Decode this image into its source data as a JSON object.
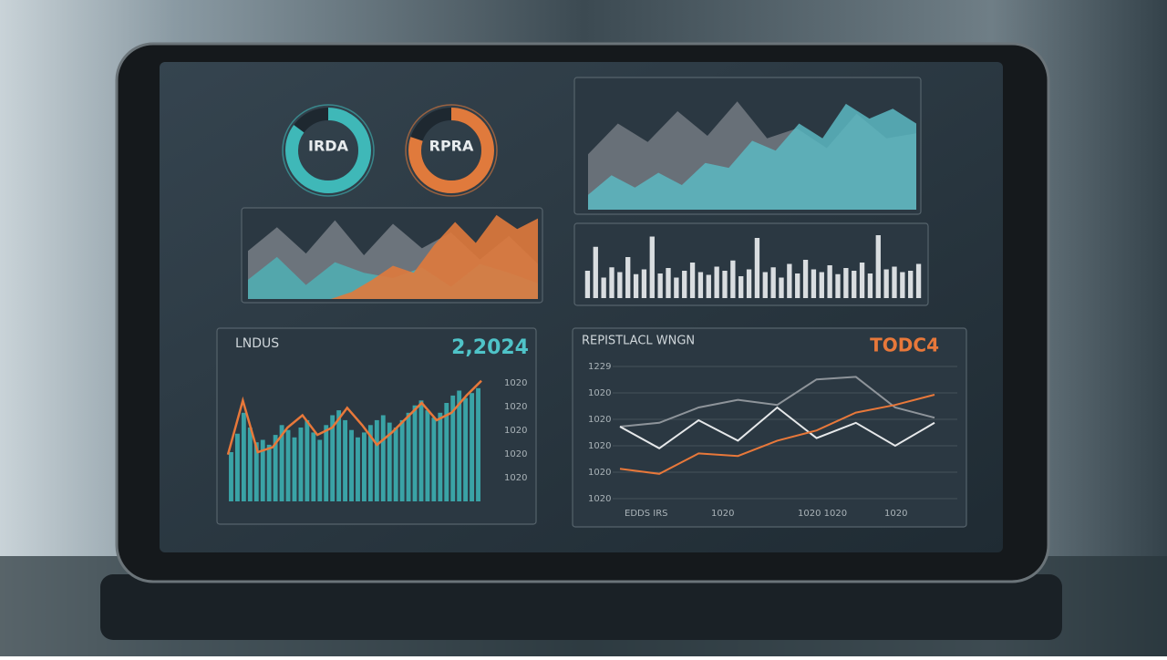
{
  "donuts": [
    {
      "label": "IRDA",
      "color": "#3fb8b8",
      "value": 85
    },
    {
      "label": "RPRA",
      "color": "#e07a3c",
      "value": 80
    }
  ],
  "top_area": {
    "ylim": [
      0,
      100
    ],
    "series": [
      {
        "color": "#7d838b",
        "values": [
          45,
          70,
          55,
          80,
          60,
          88,
          58,
          66,
          50,
          78,
          58,
          62
        ]
      },
      {
        "color": "#5cb9c2",
        "values": [
          12,
          28,
          18,
          30,
          20,
          38,
          34,
          56,
          48,
          70,
          58,
          86,
          74,
          82,
          70
        ]
      }
    ]
  },
  "mid_area": {
    "ylim": [
      0,
      100
    ],
    "series": [
      {
        "color": "#7d838b",
        "values": [
          55,
          82,
          52,
          90,
          50,
          86,
          58,
          76,
          45,
          72,
          40
        ]
      },
      {
        "color": "#4fb0b5",
        "values": [
          22,
          48,
          16,
          42,
          30,
          24,
          36,
          14,
          40,
          30,
          18
        ]
      },
      {
        "color": "#e07a3c",
        "values": [
          0,
          0,
          0,
          0,
          0,
          8,
          22,
          38,
          30,
          62,
          88,
          64,
          96,
          80,
          92
        ]
      }
    ]
  },
  "bar_chart": {
    "ylim": [
      0,
      100
    ],
    "color": "#d9dde0",
    "values": [
      40,
      75,
      30,
      45,
      38,
      60,
      35,
      42,
      90,
      36,
      44,
      30,
      40,
      52,
      38,
      34,
      46,
      40,
      55,
      32,
      42,
      88,
      38,
      45,
      30,
      50,
      36,
      56,
      42,
      38,
      48,
      35,
      44,
      40,
      52,
      36,
      92,
      42,
      46,
      38,
      40,
      50
    ]
  },
  "volume_panel": {
    "title": "LNDUS",
    "value": "2,2024",
    "ylim": [
      0,
      100
    ],
    "yticks": [
      "1020",
      "1020",
      "1020",
      "1020",
      "1020"
    ],
    "bar_color": "#3aa3a6",
    "bars": [
      40,
      55,
      72,
      60,
      48,
      50,
      46,
      54,
      62,
      58,
      52,
      60,
      66,
      56,
      50,
      62,
      70,
      74,
      66,
      58,
      52,
      56,
      62,
      66,
      70,
      64,
      60,
      66,
      72,
      78,
      82,
      74,
      68,
      72,
      80,
      86,
      90,
      84,
      88,
      92
    ],
    "line_color": "#e8783a",
    "line": [
      38,
      82,
      40,
      44,
      60,
      70,
      54,
      60,
      76,
      62,
      46,
      56,
      68,
      80,
      66,
      72,
      86,
      98
    ]
  },
  "trend_panel": {
    "title": "REPISTLACL WNGN",
    "value": "TODC4",
    "ylim": [
      0,
      100
    ],
    "yticks": [
      "1229",
      "1020",
      "1020",
      "1020",
      "1020",
      "1020"
    ],
    "xticks": [
      "EDDS IRS",
      "1020",
      "1020 1020",
      "1020"
    ],
    "series": [
      {
        "color": "#8e949a",
        "values": [
          55,
          58,
          70,
          76,
          72,
          92,
          94,
          70,
          62
        ]
      },
      {
        "color": "#e6e8ea",
        "values": [
          55,
          38,
          60,
          44,
          70,
          46,
          58,
          40,
          58
        ]
      },
      {
        "color": "#e8783a",
        "values": [
          22,
          18,
          34,
          32,
          44,
          52,
          66,
          72,
          80
        ]
      }
    ]
  }
}
